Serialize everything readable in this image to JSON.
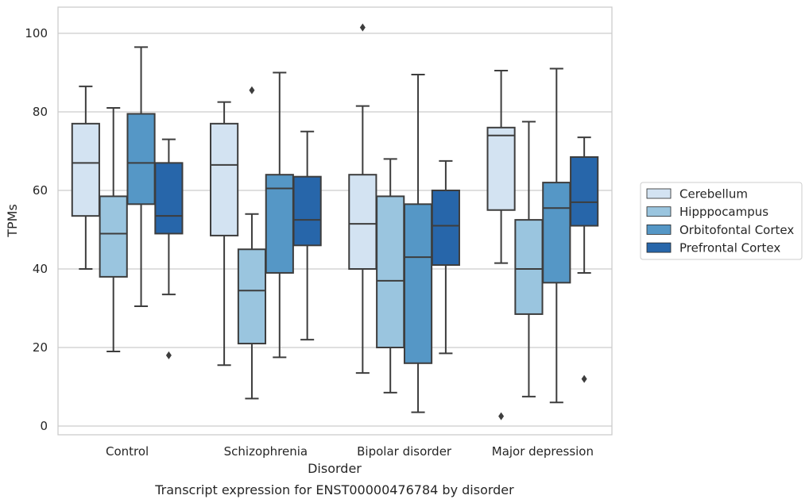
{
  "chart_data": {
    "type": "box",
    "title": "",
    "caption": "Transcript expression for ENST00000476784 by disorder",
    "xlabel": "Disorder",
    "ylabel": "TPMs",
    "ylim": [
      -2,
      107
    ],
    "yticks": [
      0,
      20,
      40,
      60,
      80,
      100
    ],
    "grid": "horizontal",
    "legend_position": "right",
    "categories": [
      "Control",
      "Schizophrenia",
      "Bipolar disorder",
      "Major depression"
    ],
    "series": [
      {
        "name": "Cerebellum",
        "color": "#d3e3f2",
        "boxes": [
          {
            "whisker_low": 40,
            "q1": 53.5,
            "median": 67,
            "q3": 77,
            "whisker_high": 86.5,
            "outliers": []
          },
          {
            "whisker_low": 15.5,
            "q1": 48.5,
            "median": 66.5,
            "q3": 77,
            "whisker_high": 82.5,
            "outliers": []
          },
          {
            "whisker_low": 13.5,
            "q1": 40,
            "median": 51.5,
            "q3": 64,
            "whisker_high": 81.5,
            "outliers": [
              101.5
            ]
          },
          {
            "whisker_low": 41.5,
            "q1": 55,
            "median": 74,
            "q3": 76,
            "whisker_high": 90.5,
            "outliers": [
              2.5
            ]
          }
        ]
      },
      {
        "name": "Hipppocampus",
        "color": "#9ac5df",
        "boxes": [
          {
            "whisker_low": 19,
            "q1": 38,
            "median": 49,
            "q3": 58.5,
            "whisker_high": 81,
            "outliers": []
          },
          {
            "whisker_low": 7,
            "q1": 21,
            "median": 34.5,
            "q3": 45,
            "whisker_high": 54,
            "outliers": [
              85.5
            ]
          },
          {
            "whisker_low": 8.5,
            "q1": 20,
            "median": 37,
            "q3": 58.5,
            "whisker_high": 68,
            "outliers": []
          },
          {
            "whisker_low": 7.5,
            "q1": 28.5,
            "median": 40,
            "q3": 52.5,
            "whisker_high": 77.5,
            "outliers": []
          }
        ]
      },
      {
        "name": "Orbitofontal Cortex",
        "color": "#5597c6",
        "boxes": [
          {
            "whisker_low": 30.5,
            "q1": 56.5,
            "median": 67,
            "q3": 79.5,
            "whisker_high": 96.5,
            "outliers": []
          },
          {
            "whisker_low": 17.5,
            "q1": 39,
            "median": 60.5,
            "q3": 64,
            "whisker_high": 90,
            "outliers": []
          },
          {
            "whisker_low": 3.5,
            "q1": 16,
            "median": 43,
            "q3": 56.5,
            "whisker_high": 89.5,
            "outliers": []
          },
          {
            "whisker_low": 6,
            "q1": 36.5,
            "median": 55.5,
            "q3": 62,
            "whisker_high": 91,
            "outliers": []
          }
        ]
      },
      {
        "name": "Prefrontal Cortex",
        "color": "#2766aa",
        "boxes": [
          {
            "whisker_low": 33.5,
            "q1": 49,
            "median": 53.5,
            "q3": 67,
            "whisker_high": 73,
            "outliers": [
              18
            ]
          },
          {
            "whisker_low": 22,
            "q1": 46,
            "median": 52.5,
            "q3": 63.5,
            "whisker_high": 75,
            "outliers": []
          },
          {
            "whisker_low": 18.5,
            "q1": 41,
            "median": 51,
            "q3": 60,
            "whisker_high": 67.5,
            "outliers": []
          },
          {
            "whisker_low": 39,
            "q1": 51,
            "median": 57,
            "q3": 68.5,
            "whisker_high": 73.5,
            "outliers": [
              12
            ]
          }
        ]
      }
    ]
  }
}
